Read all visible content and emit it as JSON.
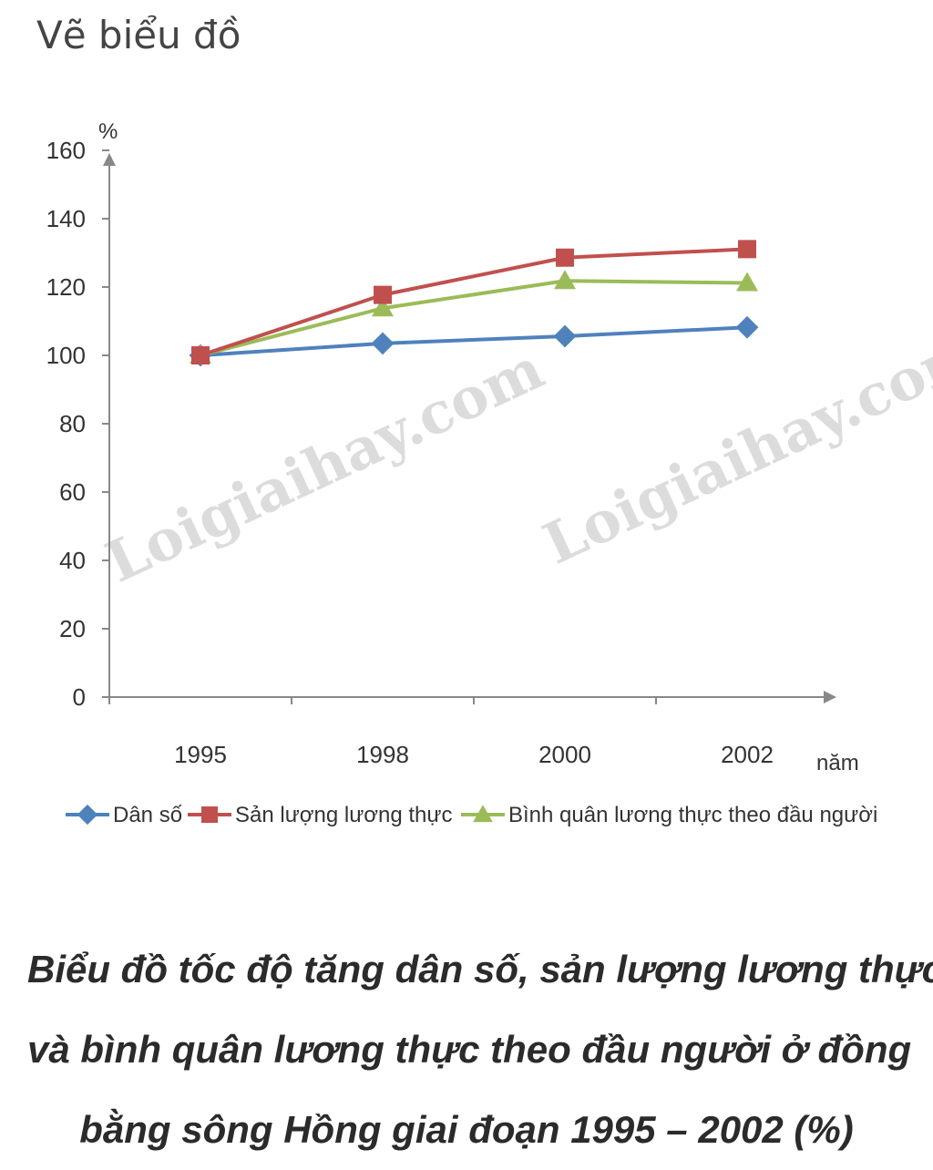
{
  "page": {
    "heading": "Vẽ biểu đồ"
  },
  "chart_data": {
    "type": "line",
    "categories": [
      "1995",
      "1998",
      "2000",
      "2002"
    ],
    "series": [
      {
        "name": "Dân số",
        "values": [
          100,
          103.5,
          105.6,
          108.2
        ],
        "color": "#4f81bd",
        "marker": "diamond"
      },
      {
        "name": "Sản lượng lương thực",
        "values": [
          100,
          117.7,
          128.6,
          131.1
        ],
        "color": "#c0504d",
        "marker": "square"
      },
      {
        "name": "Bình quân lương thực theo đầu người",
        "values": [
          100,
          113.8,
          121.8,
          121.2
        ],
        "color": "#9bbb59",
        "marker": "triangle"
      }
    ],
    "ylabel": "%",
    "xlabel": "năm",
    "ylim": [
      0,
      160
    ],
    "yticks": [
      0,
      20,
      40,
      60,
      80,
      100,
      120,
      140,
      160
    ],
    "grid": false,
    "legend_position": "bottom",
    "title_lines": [
      "Biểu đồ tốc độ tăng dân số, sản lượng lương thực",
      "và bình quân lương thực theo đầu người ở đồng",
      "bằng sông Hồng giai đoạn 1995 – 2002 (%)"
    ]
  },
  "watermarks": [
    "Loigiaihay.com",
    "Loigiaihay.com"
  ]
}
